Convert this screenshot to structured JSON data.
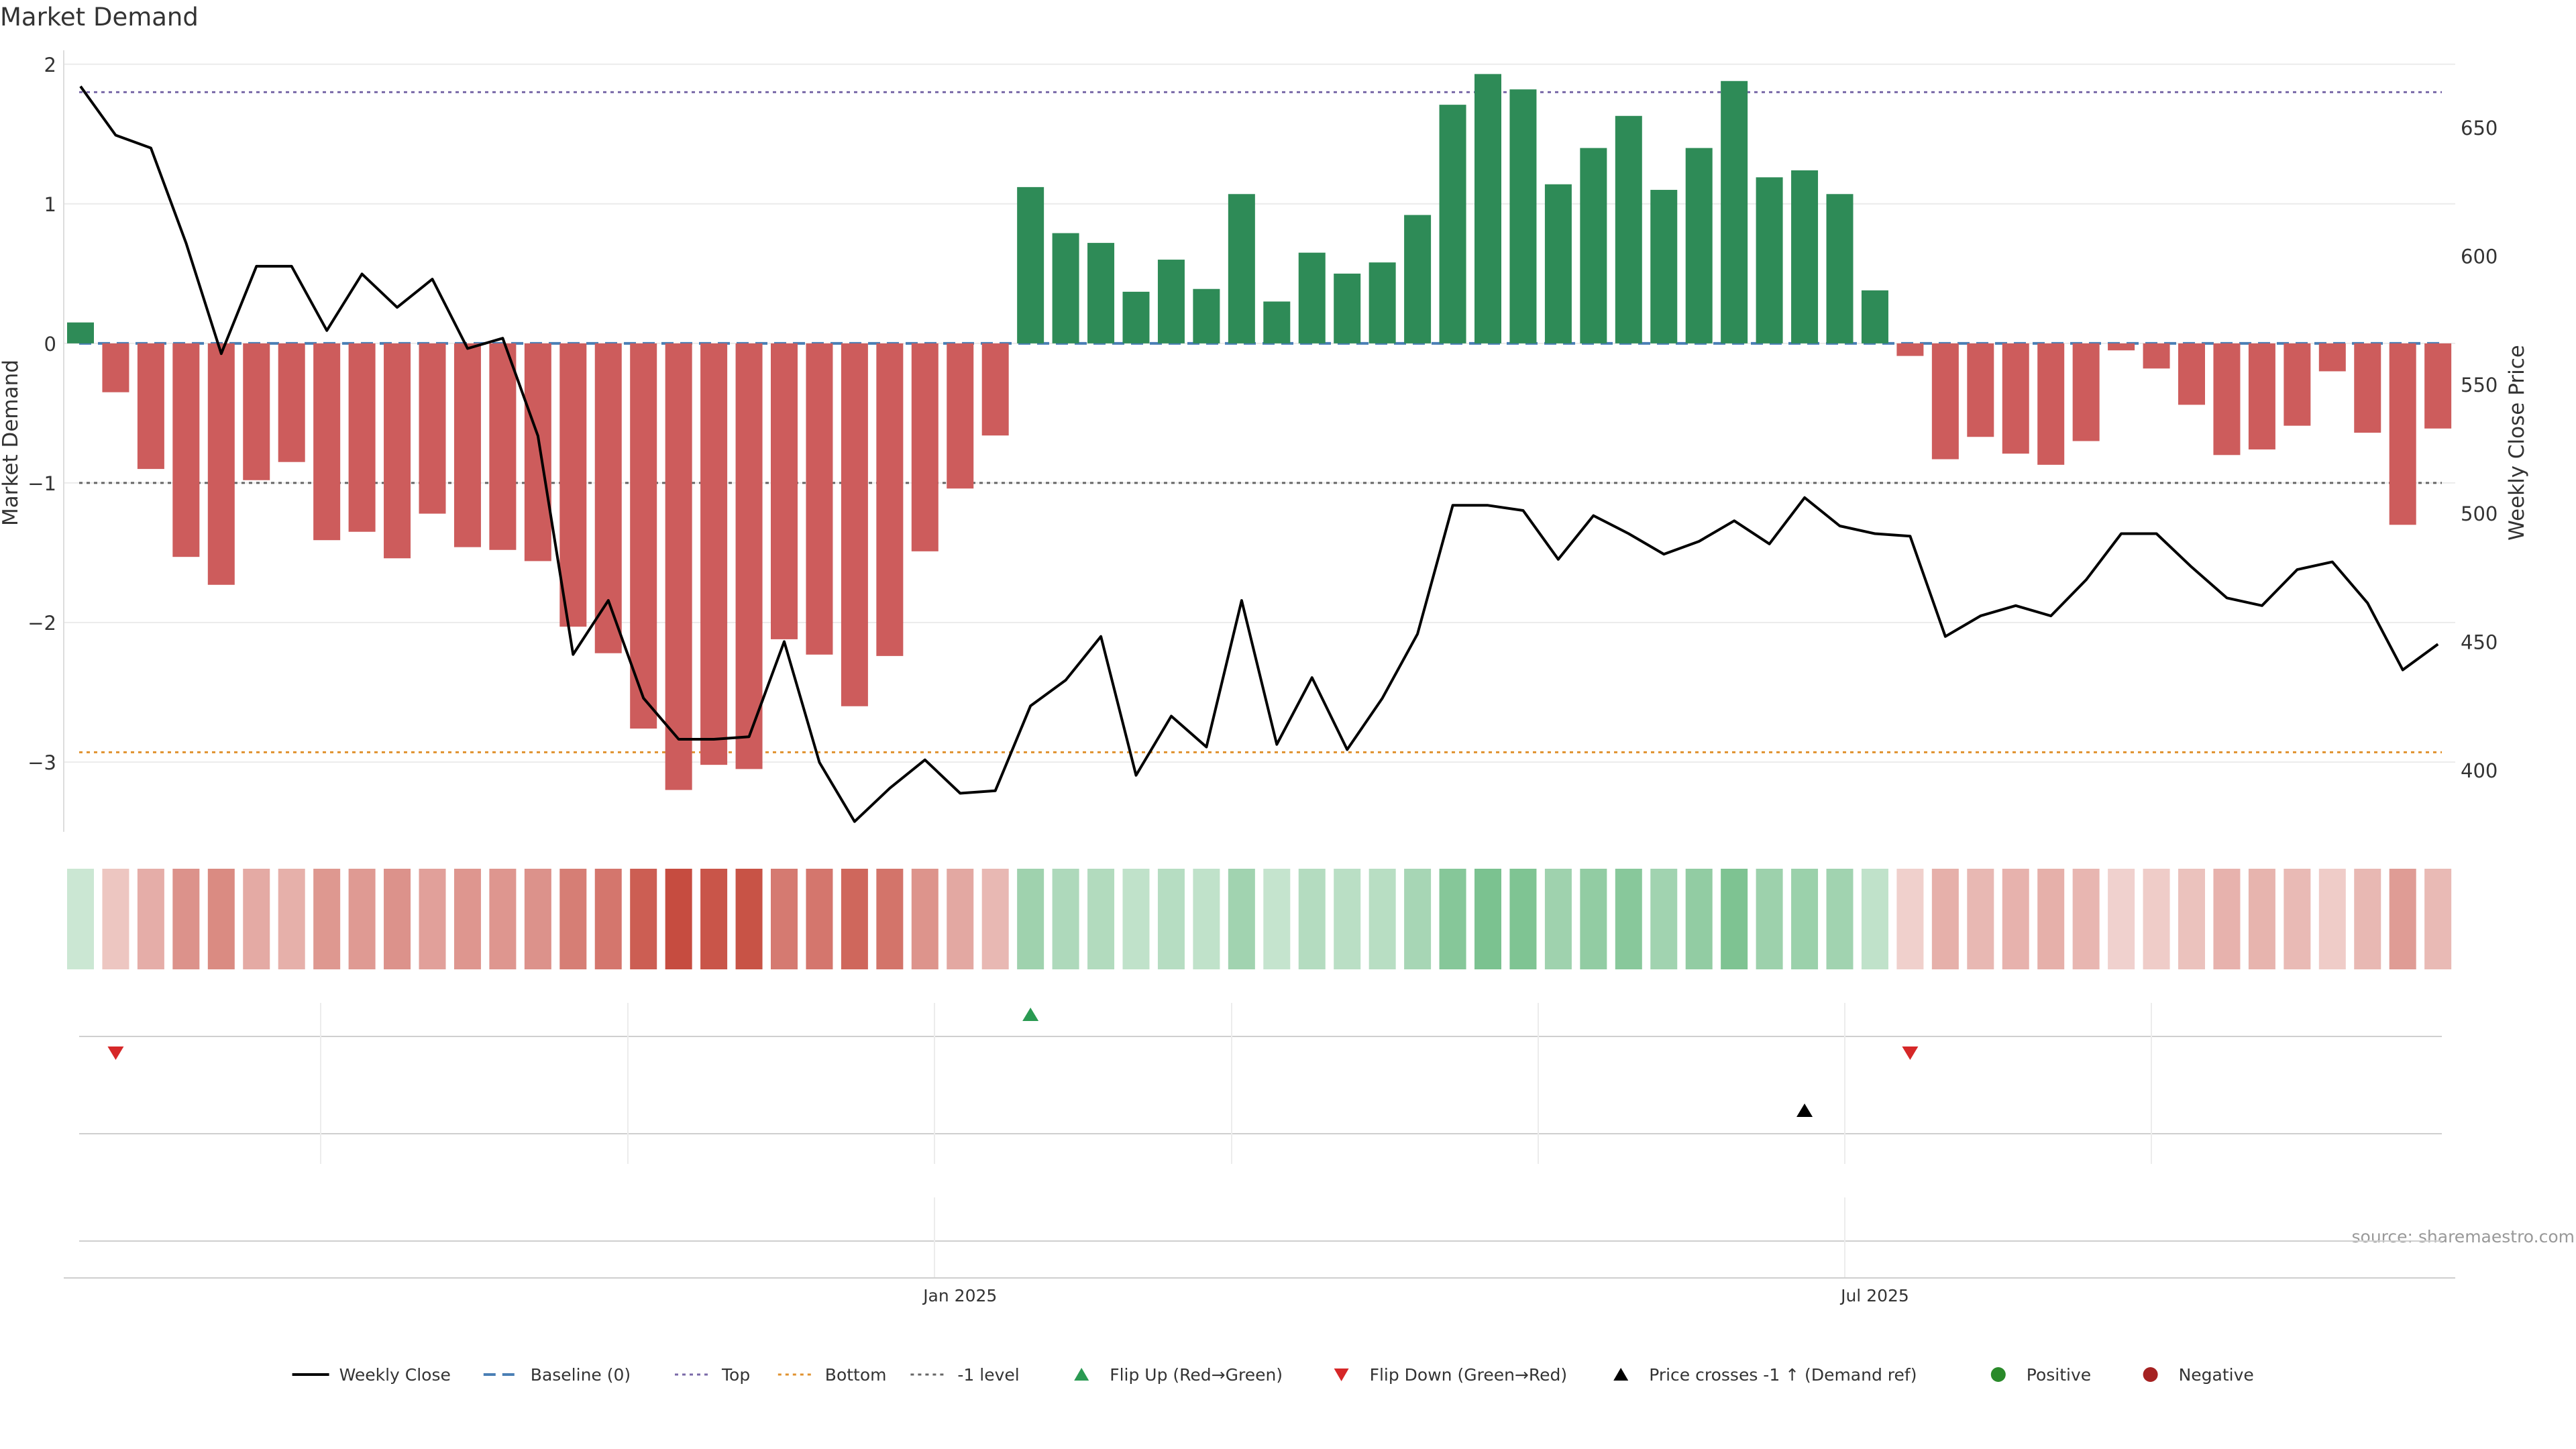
{
  "chart_data": {
    "type": "bar",
    "title": "Market Demand",
    "ylabel_left": "Market Demand",
    "ylabel_right": "Weekly Close Price",
    "ylim_left": [
      -3.5,
      2.1
    ],
    "yticks_left": [
      2,
      1,
      0,
      -1,
      -2,
      -3
    ],
    "yticks_left_labels": [
      "2",
      "1",
      "0",
      "−1",
      "−2",
      "−3"
    ],
    "ylim_right": [
      376,
      680
    ],
    "yticks_right": [
      650,
      600,
      550,
      500,
      450,
      400
    ],
    "yticks_right_labels": [
      "650",
      "600",
      "550",
      "500",
      "450",
      "400"
    ],
    "x_tick_labels": [
      {
        "label": "Jan 2025",
        "index": 25
      },
      {
        "label": "Jul 2025",
        "index": 51
      }
    ],
    "reference_lines": [
      {
        "name": "Top",
        "value": 1.8,
        "color": "#7a6aa8"
      },
      {
        "name": "Baseline (0)",
        "value": 0,
        "color": "#4a7fb5"
      },
      {
        "name": "-1 level",
        "value": -1,
        "color": "#666666"
      },
      {
        "name": "Bottom",
        "value": -2.93,
        "color": "#e0922f"
      }
    ],
    "series": [
      {
        "name": "Market Demand",
        "kind": "bar",
        "values": [
          0.15,
          -0.35,
          -0.9,
          -1.53,
          -1.73,
          -0.98,
          -0.85,
          -1.41,
          -1.35,
          -1.54,
          -1.22,
          -1.46,
          -1.48,
          -1.56,
          -2.03,
          -2.22,
          -2.76,
          -3.2,
          -3.02,
          -3.05,
          -2.12,
          -2.23,
          -2.6,
          -2.24,
          -1.49,
          -1.04,
          -0.66,
          1.12,
          0.79,
          0.72,
          0.37,
          0.6,
          0.39,
          1.07,
          0.3,
          0.65,
          0.5,
          0.58,
          0.92,
          1.71,
          1.93,
          1.82,
          1.14,
          1.4,
          1.63,
          1.1,
          1.4,
          1.88,
          1.19,
          1.24,
          1.07,
          0.38,
          -0.09,
          -0.83,
          -0.67,
          -0.79,
          -0.87,
          -0.7,
          -0.05,
          -0.18,
          -0.44,
          -0.8,
          -0.76,
          -0.59,
          -0.2,
          -0.64,
          -1.3,
          -0.61
        ]
      },
      {
        "name": "Weekly Close",
        "kind": "line",
        "values": [
          666,
          647,
          642,
          605,
          562,
          596,
          596,
          571,
          593,
          580,
          591,
          564,
          568,
          530,
          445,
          466,
          428,
          412,
          412,
          413,
          450,
          403,
          380,
          393,
          404,
          391,
          392,
          425,
          435,
          452,
          398,
          421,
          409,
          466,
          410,
          436,
          408,
          428,
          453,
          503,
          503,
          501,
          482,
          499,
          492,
          484,
          489,
          497,
          488,
          506,
          495,
          492,
          491,
          452,
          460,
          464,
          460,
          474,
          492,
          492,
          479,
          467,
          464,
          478,
          481,
          465,
          439,
          449
        ]
      }
    ],
    "legend": {
      "placement": "bottom-center",
      "entries": [
        {
          "label": "Weekly Close",
          "marker": "line",
          "color": "#000000"
        },
        {
          "label": "Baseline (0)",
          "marker": "dashed",
          "color": "#4a7fb5"
        },
        {
          "label": "Top",
          "marker": "dotted",
          "color": "#7a6aa8"
        },
        {
          "label": "Bottom",
          "marker": "dotted",
          "color": "#e0922f"
        },
        {
          "label": "-1 level",
          "marker": "dotted",
          "color": "#666666"
        },
        {
          "label": "Flip Up (Red→Green)",
          "marker": "triangle-up",
          "color": "#2a9a52"
        },
        {
          "label": "Flip Down (Green→Red)",
          "marker": "triangle-down",
          "color": "#d62728"
        },
        {
          "label": "Price crosses -1 ↑ (Demand ref)",
          "marker": "triangle-up",
          "color": "#000000"
        },
        {
          "label": "Positive",
          "marker": "circle",
          "color": "#2a8a2a"
        },
        {
          "label": "Negative",
          "marker": "circle",
          "color": "#a52222"
        }
      ]
    },
    "events": {
      "flip_up_indices": [
        27
      ],
      "flip_down_indices": [
        1,
        52
      ],
      "price_cross_indices": [
        49
      ]
    },
    "source": "source: sharemaestro.com"
  },
  "colors": {
    "positive_bar": "#2e8b57",
    "negative_bar": "#cd5c5c",
    "heat_positive": "#2e9e4f",
    "heat_negative": "#c0392b"
  }
}
